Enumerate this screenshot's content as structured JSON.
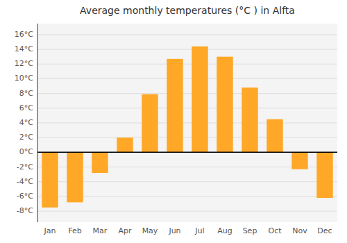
{
  "chart_data": {
    "type": "bar",
    "title": "Average monthly temperatures (°C ) in Alfta",
    "categories": [
      "Jan",
      "Feb",
      "Mar",
      "Apr",
      "May",
      "Jun",
      "Jul",
      "Aug",
      "Sep",
      "Oct",
      "Nov",
      "Dec"
    ],
    "values": [
      -7.5,
      -6.8,
      -2.8,
      2.0,
      7.9,
      12.7,
      14.4,
      13.0,
      8.8,
      4.5,
      -2.3,
      -6.2
    ],
    "color": "#FFA726",
    "ylim": [
      -9.5,
      17.5
    ],
    "yticks": [
      {
        "value": -8,
        "label": "-8°C"
      },
      {
        "value": -6,
        "label": "-6°C"
      },
      {
        "value": -4,
        "label": "-4°C"
      },
      {
        "value": -2,
        "label": "-2°C"
      },
      {
        "value": 0,
        "label": "0°C"
      },
      {
        "value": 2,
        "label": "2°C"
      },
      {
        "value": 4,
        "label": "4°C"
      },
      {
        "value": 6,
        "label": "6°C"
      },
      {
        "value": 8,
        "label": "8°C"
      },
      {
        "value": 10,
        "label": "10°C"
      },
      {
        "value": 12,
        "label": "12°C"
      },
      {
        "value": 14,
        "label": "14°C"
      },
      {
        "value": 16,
        "label": "16°C"
      }
    ],
    "grid": true
  }
}
